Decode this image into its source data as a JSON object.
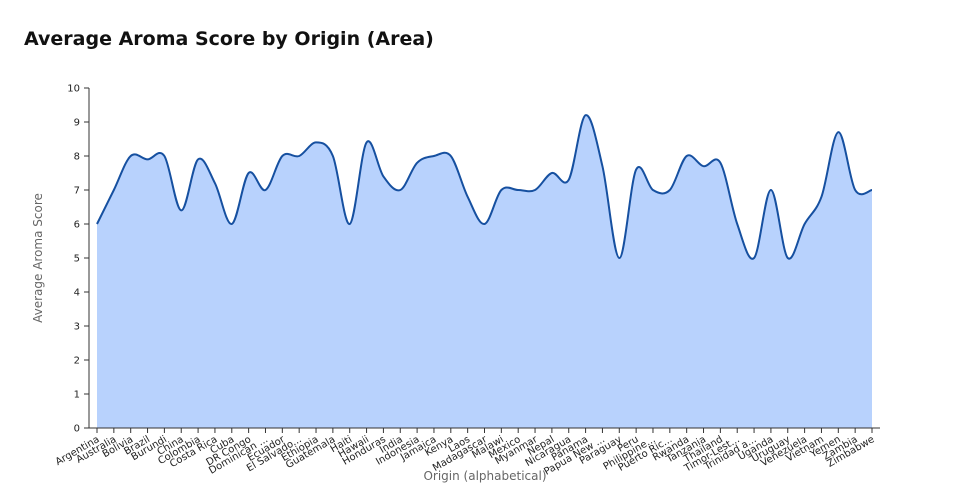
{
  "chart_data": {
    "type": "area",
    "title": "Average Aroma Score by Origin (Area)",
    "xlabel": "Origin (alphabetical)",
    "ylabel": "Average Aroma Score",
    "ylim": [
      0,
      10
    ],
    "yticks": [
      0,
      1,
      2,
      3,
      4,
      5,
      6,
      7,
      8,
      9,
      10
    ],
    "grid": false,
    "colors": {
      "fill": "#b8d2fd",
      "line": "#1650a0",
      "axis": "#333333"
    },
    "categories": [
      "Argentina",
      "Australia",
      "Bolivia",
      "Brazil",
      "Burundi",
      "China",
      "Colombia",
      "Costa Rica",
      "Cuba",
      "DR Congo",
      "Dominican ...",
      "Ecuador",
      "El Salvado...",
      "Ethiopia",
      "Guatemala",
      "Haiti",
      "Hawaii",
      "Honduras",
      "India",
      "Indonesia",
      "Jamaica",
      "Kenya",
      "Laos",
      "Madagascar",
      "Malawi",
      "Mexico",
      "Myanmar",
      "Nepal",
      "Nicaragua",
      "Panama",
      "Papua New ...",
      "Paraguay",
      "Peru",
      "Philippine...",
      "Puerto Ric...",
      "Rwanda",
      "Tanzania",
      "Thailand",
      "Timor-Lest...",
      "Trinidad a...",
      "Uganda",
      "Uruguay",
      "Venezuela",
      "Vietnam",
      "Yemen",
      "Zambia",
      "Zimbabwe"
    ],
    "values": [
      6,
      7,
      8,
      7.9,
      8,
      6.4,
      7.9,
      7.2,
      6,
      7.5,
      7,
      8,
      8,
      8.4,
      8,
      6,
      8.4,
      7.4,
      7,
      7.8,
      8,
      8,
      6.8,
      6,
      7,
      7,
      7,
      7.5,
      7.3,
      9.2,
      7.7,
      5,
      7.6,
      7,
      7,
      8,
      7.7,
      7.8,
      6,
      5,
      7,
      5,
      6,
      6.8,
      8.7,
      7,
      7
    ]
  }
}
